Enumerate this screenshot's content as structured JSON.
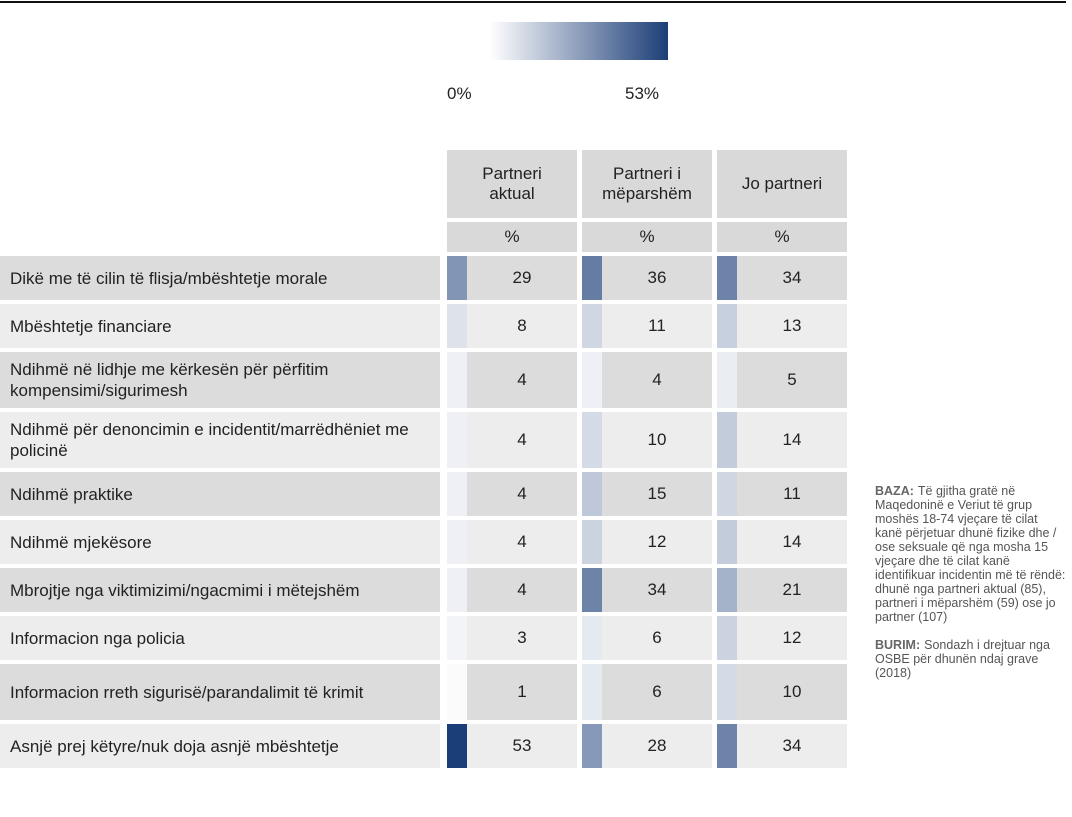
{
  "legend": {
    "min": {
      "value": 0,
      "label": "0%"
    },
    "max": {
      "value": 53,
      "label": "53%"
    }
  },
  "table": {
    "columns": [
      "Partneri aktual",
      "Partneri i mëparshëm",
      "Jo partneri"
    ],
    "unit_row": [
      "%",
      "%",
      "%"
    ],
    "rows": [
      {
        "label": "Dikë me të cilin të flisja/mbështetje morale",
        "values": [
          29,
          36,
          34
        ]
      },
      {
        "label": "Mbështetje financiare",
        "values": [
          8,
          11,
          13
        ]
      },
      {
        "label": "Ndihmë në lidhje me kërkesën për përfitim kompensimi/sigurimesh",
        "values": [
          4,
          4,
          5
        ]
      },
      {
        "label": "Ndihmë për denoncimin e incidentit/marrëdhëniet me policinë",
        "values": [
          4,
          10,
          14
        ]
      },
      {
        "label": "Ndihmë praktike",
        "values": [
          4,
          15,
          11
        ]
      },
      {
        "label": "Ndihmë mjekësore",
        "values": [
          4,
          12,
          14
        ]
      },
      {
        "label": "Mbrojtje nga viktimizimi/ngacmimi i mëtejshëm",
        "values": [
          4,
          34,
          21
        ]
      },
      {
        "label": "Informacion nga policia",
        "values": [
          3,
          6,
          12
        ]
      },
      {
        "label": "Informacion rreth sigurisë/parandalimit të krimit",
        "values": [
          1,
          6,
          10
        ]
      },
      {
        "label": "Asnjë prej këtyre/nuk doja asnjë mbështetje",
        "values": [
          53,
          28,
          34
        ]
      }
    ]
  },
  "notes": [
    {
      "label": "BAZA:",
      "text": "Të gjitha gratë në Maqedoninë e Veriut të grup moshës 18-74 vjeçare të cilat kanë përjetuar dhunë fizike dhe / ose seksuale që nga mosha 15 vjeçare dhe të cilat kanë identifikuar incidentin më të rëndë: dhunë nga partneri aktual (85), partneri i mëparshëm (59) ose jo partner (107)"
    },
    {
      "label": "BURIM:",
      "text": "Sondazh i drejtuar nga OSBE për dhunën ndaj grave (2018)"
    }
  ]
}
